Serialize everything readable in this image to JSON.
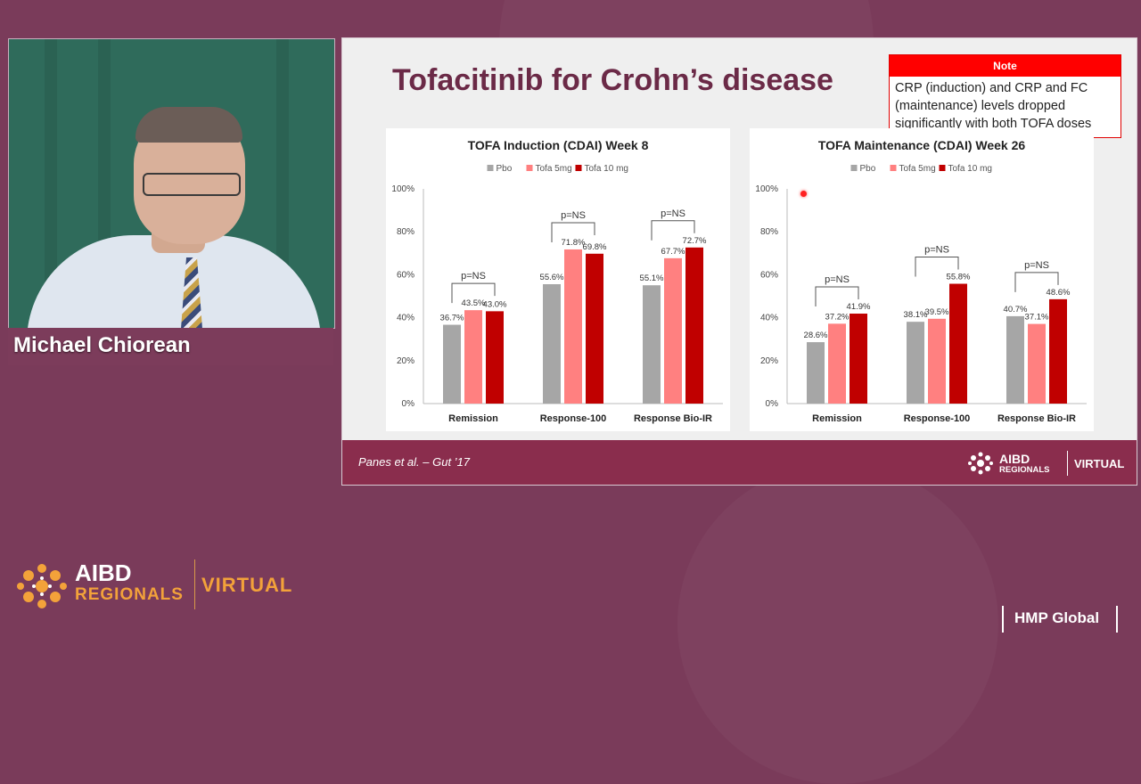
{
  "speaker": {
    "name": "Michael Chiorean"
  },
  "slide": {
    "title": "Tofacitinib for Crohn’s disease",
    "note": {
      "header": "Note",
      "text": "CRP (induction) and CRP and FC (maintenance) levels dropped significantly with both TOFA doses"
    },
    "citation": "Panes et al. – Gut ’17",
    "footer_brand": {
      "aibd": "AIBD",
      "regionals": "REGIONALS",
      "virtual": "VIRTUAL"
    }
  },
  "colors": {
    "pbo": "#a6a6a6",
    "tofa5": "#ff8080",
    "tofa10": "#c00000",
    "title": "#6b2a47",
    "footer": "#8a2d4d"
  },
  "chart_data": [
    {
      "type": "bar",
      "title": "TOFA Induction (CDAI) Week 8",
      "categories": [
        "Remission",
        "Response-100",
        "Response Bio-IR"
      ],
      "series": [
        {
          "name": "Pbo",
          "values": [
            36.7,
            55.6,
            55.1
          ]
        },
        {
          "name": "Tofa 5mg",
          "values": [
            43.5,
            71.8,
            67.7
          ]
        },
        {
          "name": "Tofa 10 mg",
          "values": [
            43.0,
            69.8,
            72.7
          ]
        }
      ],
      "value_labels": [
        [
          "36.7%",
          "55.6%",
          "55.1%"
        ],
        [
          "43.5%",
          "71.8%",
          "67.7%"
        ],
        [
          "43.0%",
          "69.8%",
          "72.7%"
        ]
      ],
      "y_ticks": [
        "0%",
        "20%",
        "40%",
        "60%",
        "80%",
        "100%"
      ],
      "ylim": [
        0,
        100
      ],
      "annotations": [
        "p=NS",
        "p=NS",
        "p=NS"
      ],
      "legend": "top"
    },
    {
      "type": "bar",
      "title": "TOFA Maintenance (CDAI) Week 26",
      "categories": [
        "Remission",
        "Response-100",
        "Response Bio-IR"
      ],
      "series": [
        {
          "name": "Pbo",
          "values": [
            28.6,
            38.1,
            40.7
          ]
        },
        {
          "name": "Tofa 5mg",
          "values": [
            37.2,
            39.5,
            37.1
          ]
        },
        {
          "name": "Tofa 10 mg",
          "values": [
            41.9,
            55.8,
            48.6
          ]
        }
      ],
      "value_labels": [
        [
          "28.6%",
          "38.1%",
          "40.7%"
        ],
        [
          "37.2%",
          "39.5%",
          "37.1%"
        ],
        [
          "41.9%",
          "55.8%",
          "48.6%"
        ]
      ],
      "y_ticks": [
        "0%",
        "20%",
        "40%",
        "60%",
        "80%",
        "100%"
      ],
      "ylim": [
        0,
        100
      ],
      "annotations": [
        "p=NS",
        "p=NS",
        "p=NS"
      ],
      "legend": "top"
    }
  ],
  "conference_logo": {
    "aibd": "AIBD",
    "regionals": "REGIONALS",
    "virtual": "VIRTUAL"
  },
  "publisher": {
    "name": "HMP Global"
  }
}
